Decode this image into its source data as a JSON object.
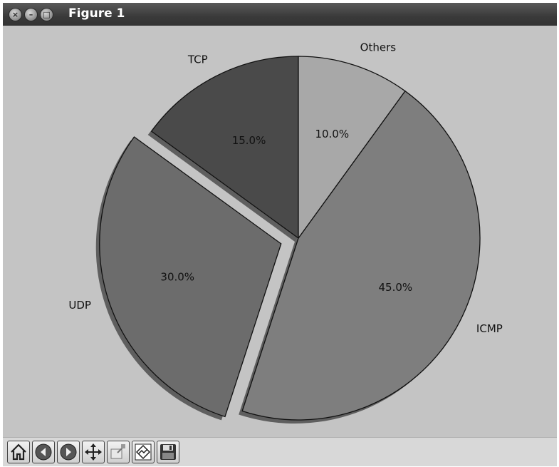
{
  "window": {
    "title": "Figure 1"
  },
  "toolbar": {
    "tools": [
      {
        "name": "home",
        "icon": "home-icon"
      },
      {
        "name": "back",
        "icon": "back-arrow-icon"
      },
      {
        "name": "forward",
        "icon": "forward-arrow-icon"
      },
      {
        "name": "pan",
        "icon": "move-arrows-icon"
      },
      {
        "name": "zoom",
        "icon": "zoom-rect-icon"
      },
      {
        "name": "configure-subplots",
        "icon": "subplots-icon"
      },
      {
        "name": "save",
        "icon": "floppy-disk-icon"
      }
    ]
  },
  "chart_data": {
    "type": "pie",
    "title": "",
    "start_angle_deg": 90,
    "direction": "counterclockwise",
    "shadow": true,
    "slices": [
      {
        "label": "TCP",
        "value": 15.0,
        "pct_label": "15.0%",
        "color": "#4a4a4a",
        "explode": 0.0
      },
      {
        "label": "UDP",
        "value": 30.0,
        "pct_label": "30.0%",
        "color": "#6c6c6c",
        "explode": 0.1
      },
      {
        "label": "ICMP",
        "value": 45.0,
        "pct_label": "45.0%",
        "color": "#7e7e7e",
        "explode": 0.0
      },
      {
        "label": "Others",
        "value": 10.0,
        "pct_label": "10.0%",
        "color": "#a8a8a8",
        "explode": 0.0
      }
    ]
  }
}
